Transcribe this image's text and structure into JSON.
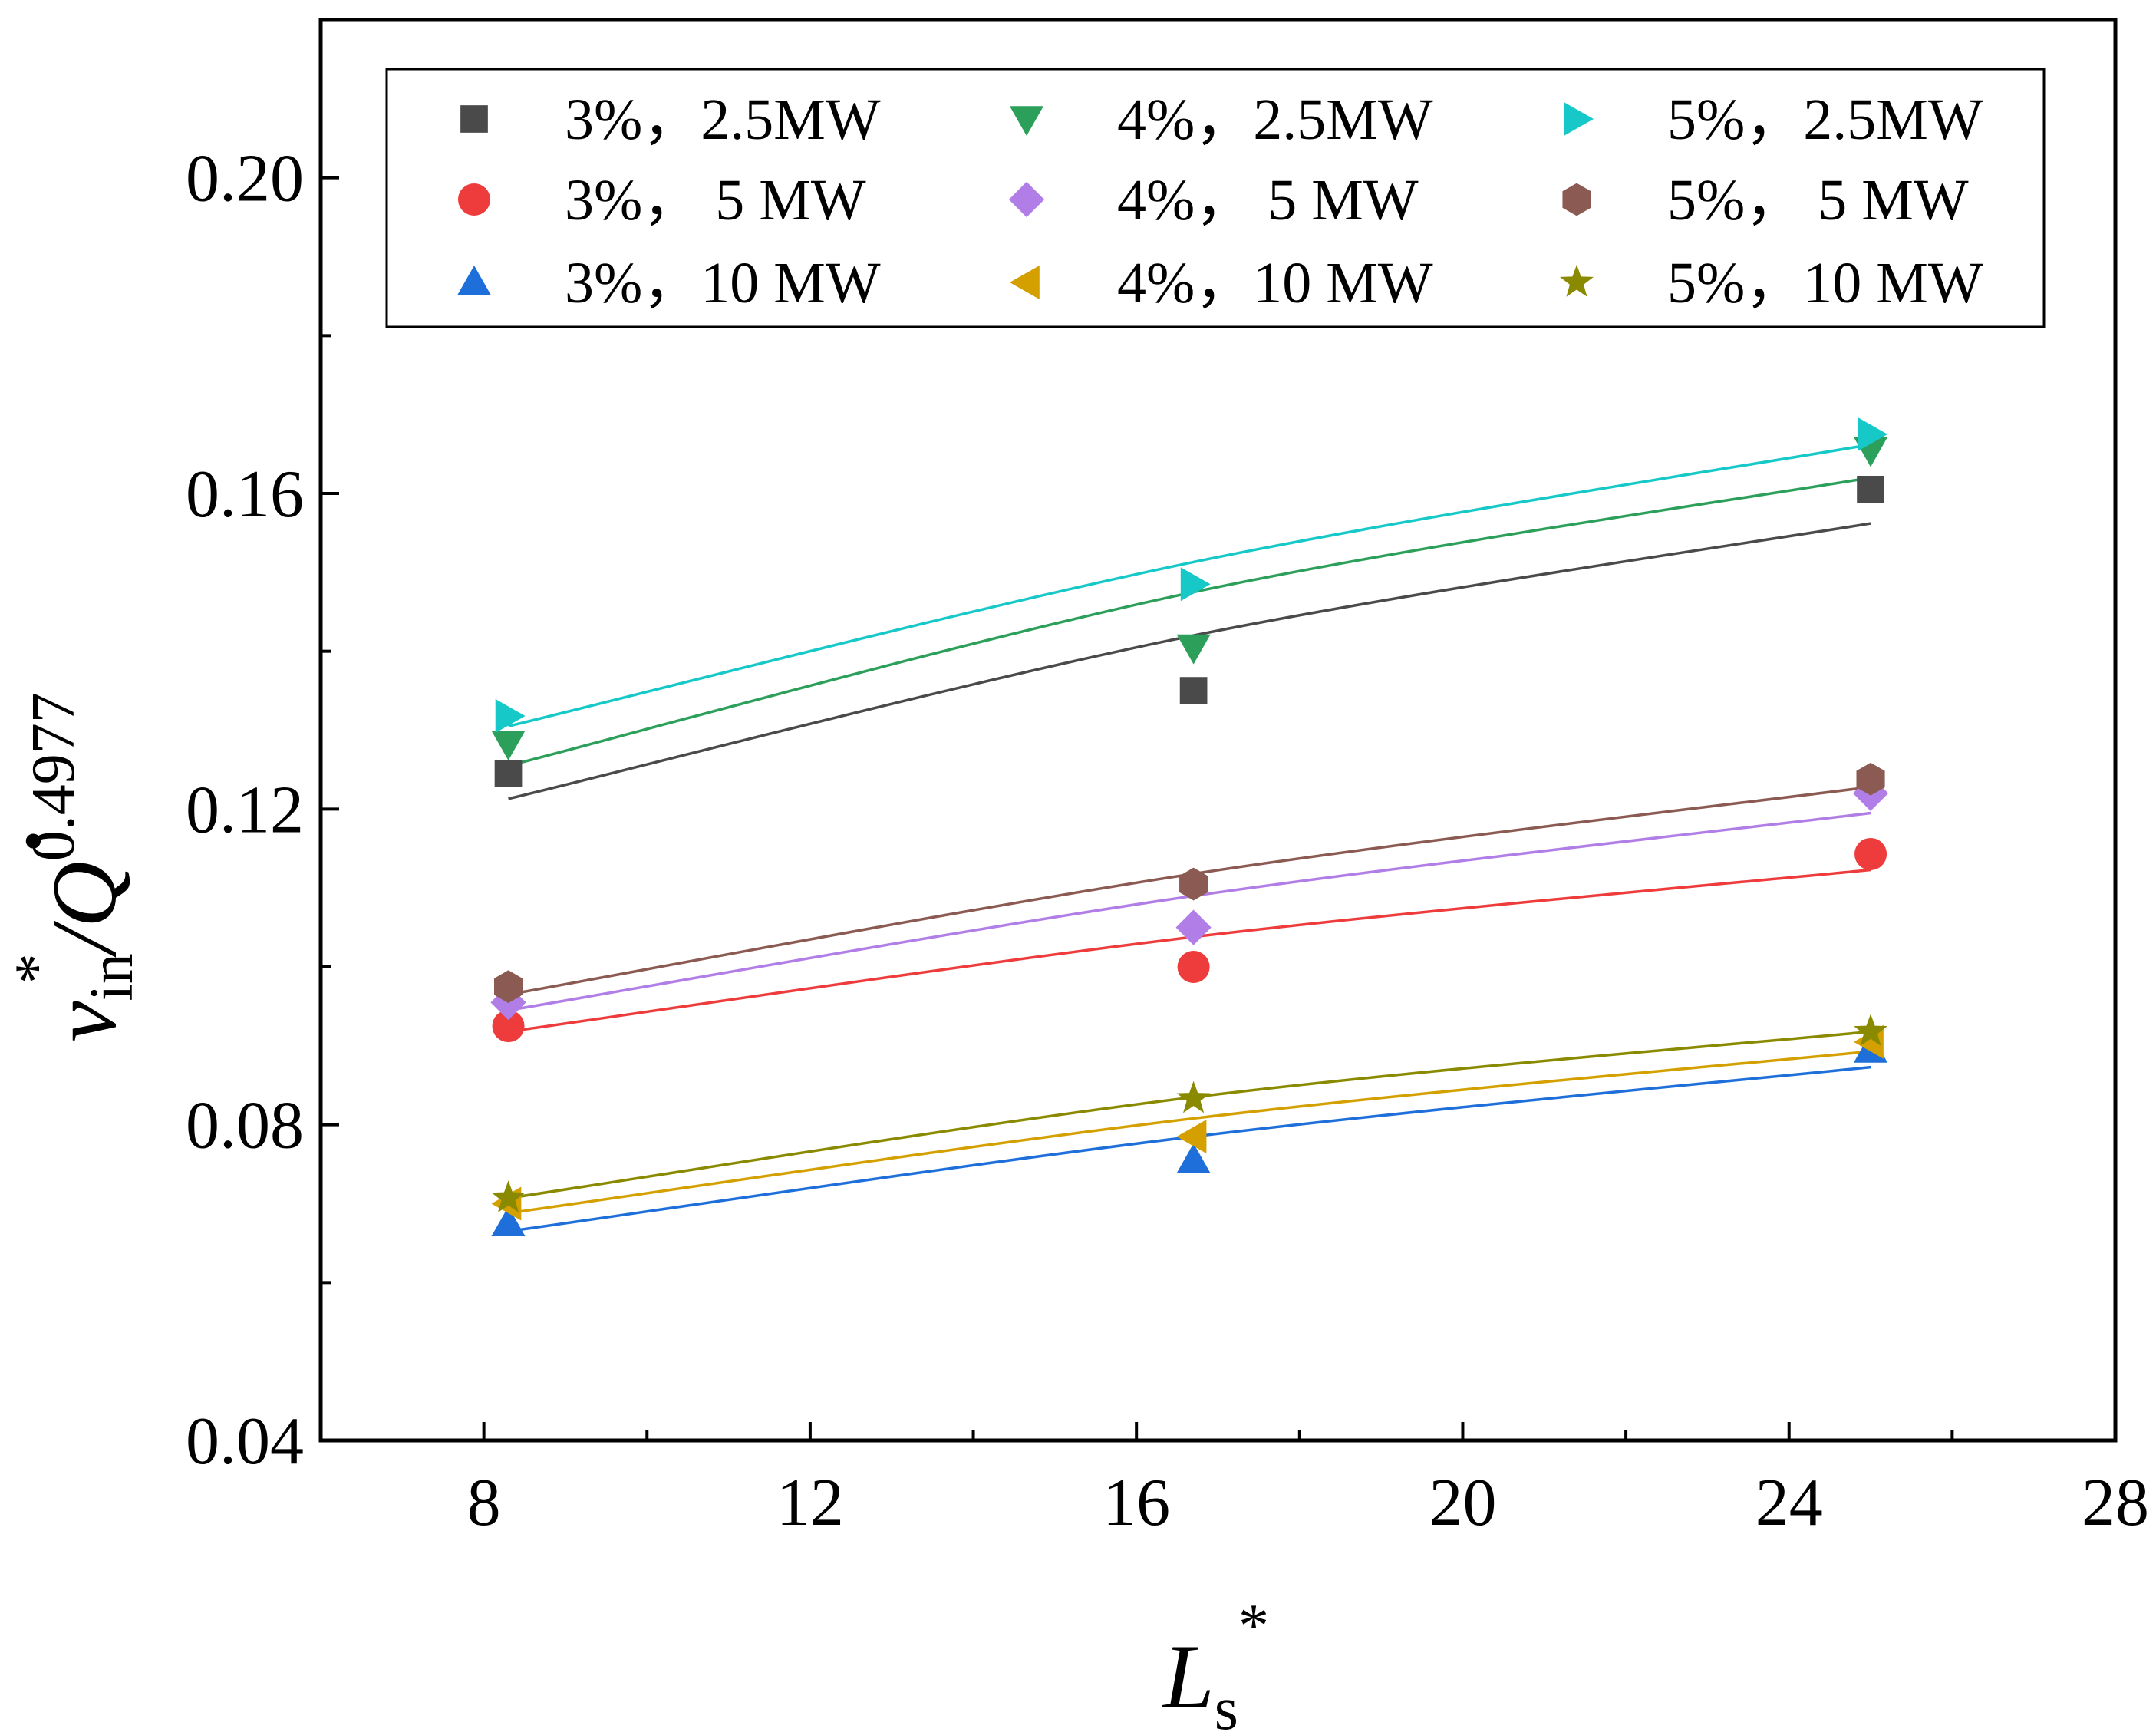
{
  "chart_data": {
    "type": "scatter",
    "title": "",
    "xlabel": {
      "main": "L",
      "sub": "s",
      "sup": "*"
    },
    "ylabel": {
      "v": "v",
      "v_sub": "in",
      "v_sup": "*",
      "slash": "/",
      "q": "Q",
      "q_dot": "•",
      "q_exp": "0.4977"
    },
    "xlim": [
      6,
      28
    ],
    "ylim": [
      0.04,
      0.22
    ],
    "xticks": [
      8,
      12,
      16,
      20,
      24,
      28
    ],
    "xtick_labels": [
      "8",
      "12",
      "16",
      "20",
      "24",
      "28"
    ],
    "yticks": [
      0.04,
      0.08,
      0.12,
      0.16,
      0.2
    ],
    "ytick_labels": [
      "0.04",
      "0.08",
      "0.12",
      "0.16",
      "0.20"
    ],
    "legend_position": "top",
    "x": [
      8.3,
      16.7,
      25.0
    ],
    "series": [
      {
        "name": "3%，2.5MW",
        "marker": "square",
        "color": "#4a4a4a",
        "values": [
          0.1245,
          0.135,
          0.1605
        ],
        "fit": [
          0.1213,
          0.142,
          0.1562
        ]
      },
      {
        "name": "3%， 5  MW",
        "marker": "circle",
        "color": "#ee3b3b",
        "values": [
          0.0925,
          0.1,
          0.1143
        ],
        "fit": [
          0.0918,
          0.1038,
          0.1123
        ]
      },
      {
        "name": "3%，10 MW",
        "marker": "triangle-up",
        "color": "#1e6fd9",
        "values": [
          0.0675,
          0.0755,
          0.0895
        ],
        "fit": [
          0.0665,
          0.0785,
          0.0873
        ]
      },
      {
        "name": "4%，2.5MW",
        "marker": "triangle-down",
        "color": "#2ca05a",
        "values": [
          0.1283,
          0.1405,
          0.1655
        ],
        "fit": [
          0.1255,
          0.1475,
          0.162
        ]
      },
      {
        "name": "4%， 5  MW",
        "marker": "diamond",
        "color": "#b07ee6",
        "values": [
          0.0955,
          0.105,
          0.122
        ],
        "fit": [
          0.0945,
          0.109,
          0.1195
        ]
      },
      {
        "name": "4%，10 MW",
        "marker": "triangle-left",
        "color": "#d4a000",
        "values": [
          0.07,
          0.0785,
          0.0905
        ],
        "fit": [
          0.0688,
          0.0808,
          0.0893
        ]
      },
      {
        "name": "5%，2.5MW",
        "marker": "triangle-right",
        "color": "#17c8c8",
        "values": [
          0.1318,
          0.1485,
          0.1675
        ],
        "fit": [
          0.1305,
          0.1513,
          0.1662
        ]
      },
      {
        "name": "5%， 5  MW",
        "marker": "hexagon",
        "color": "#8b5a52",
        "values": [
          0.0975,
          0.1105,
          0.1238
        ],
        "fit": [
          0.0965,
          0.1118,
          0.1228
        ]
      },
      {
        "name": "5%，10 MW",
        "marker": "star",
        "color": "#8a8a00",
        "values": [
          0.0707,
          0.0833,
          0.0918
        ],
        "fit": [
          0.0707,
          0.0835,
          0.0918
        ]
      }
    ]
  }
}
